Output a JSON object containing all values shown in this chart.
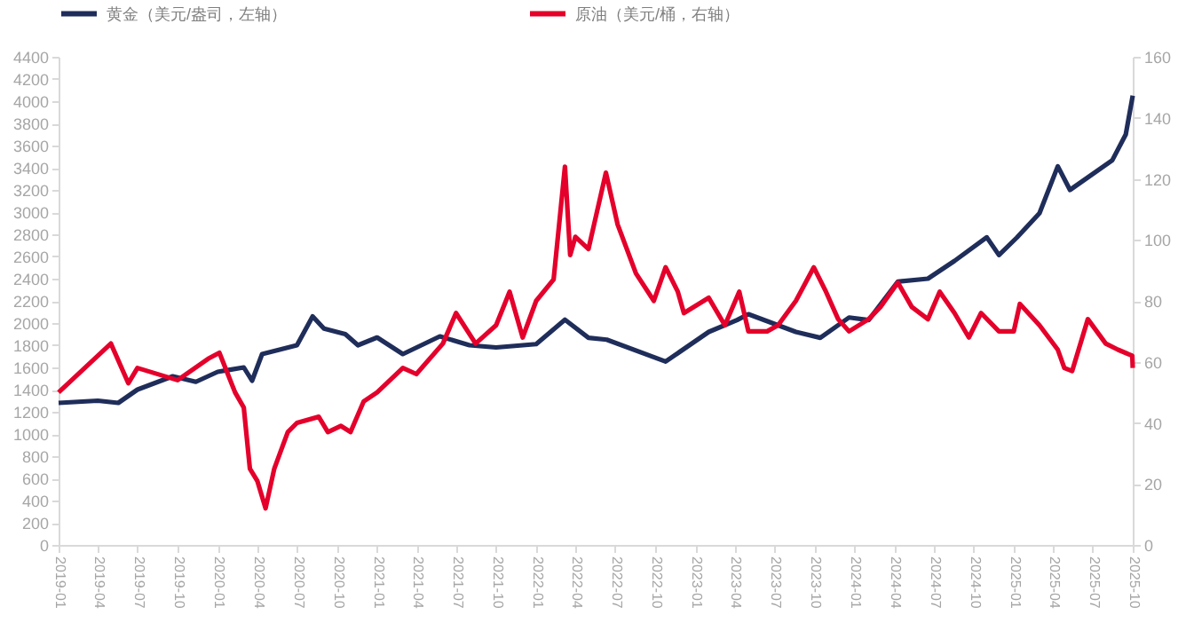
{
  "chart_data": {
    "type": "line",
    "legend": "top",
    "grid": false,
    "xlim": [
      "2019-01",
      "2025-10"
    ],
    "xticks": [
      "2019-01",
      "2019-04",
      "2019-07",
      "2019-10",
      "2020-01",
      "2020-04",
      "2020-07",
      "2020-10",
      "2021-01",
      "2021-04",
      "2021-07",
      "2021-10",
      "2022-01",
      "2022-04",
      "2022-07",
      "2022-10",
      "2023-01",
      "2023-04",
      "2023-07",
      "2023-10",
      "2024-01",
      "2024-04",
      "2024-07",
      "2024-10",
      "2025-01",
      "2025-04",
      "2025-07",
      "2025-10"
    ],
    "ylim": [
      0,
      4400
    ],
    "yticks": [
      0,
      200,
      400,
      600,
      800,
      1000,
      1200,
      1400,
      1600,
      1800,
      2000,
      2200,
      2400,
      2600,
      2800,
      3000,
      3200,
      3400,
      3600,
      3800,
      4000,
      4200,
      4400
    ],
    "y2lim": [
      0,
      160
    ],
    "y2ticks": [
      0,
      20,
      40,
      60,
      80,
      100,
      120,
      140,
      160
    ],
    "series": [
      {
        "name": "黄金（美元/盎司，左轴）",
        "color": "#1f2d5a",
        "x": [
          "2019-01-01",
          "2019-04-01",
          "2019-05-18",
          "2019-07-01",
          "2019-09-20",
          "2019-11-12",
          "2020-01-01",
          "2020-03-01",
          "2020-03-20",
          "2020-04-12",
          "2020-07-01",
          "2020-08-06",
          "2020-09-01",
          "2020-10-20",
          "2020-11-18",
          "2021-01-01",
          "2021-03-01",
          "2021-05-25",
          "2021-08-01",
          "2021-10-01",
          "2022-01-01",
          "2022-03-08",
          "2022-05-01",
          "2022-06-12",
          "2022-10-25",
          "2023-02-01",
          "2023-04-07",
          "2023-05-03",
          "2023-08-20",
          "2023-10-15",
          "2023-12-20",
          "2024-02-03",
          "2024-04-10",
          "2024-06-18",
          "2024-08-18",
          "2024-10-31",
          "2024-11-28",
          "2025-01-08",
          "2025-03-01",
          "2025-04-12",
          "2025-05-10",
          "2025-08-15",
          "2025-09-15",
          "2025-10-01"
        ],
        "values": [
          1280,
          1300,
          1280,
          1400,
          1520,
          1470,
          1560,
          1600,
          1480,
          1720,
          1800,
          2060,
          1950,
          1900,
          1800,
          1870,
          1720,
          1880,
          1800,
          1780,
          1810,
          2030,
          1867,
          1850,
          1653,
          1920,
          2027,
          2080,
          1920,
          1867,
          2050,
          2027,
          2373,
          2400,
          2560,
          2773,
          2613,
          2770,
          2990,
          3413,
          3200,
          3467,
          3700,
          4050
        ]
      },
      {
        "name": "原油（美元/桶，右轴）",
        "color": "#e4002b",
        "axis": "y2",
        "x": [
          "2019-01-01",
          "2019-04-01",
          "2019-05-01",
          "2019-06-10",
          "2019-07-01",
          "2019-10-01",
          "2019-12-10",
          "2020-01-05",
          "2020-02-10",
          "2020-03-01",
          "2020-03-15",
          "2020-04-01",
          "2020-04-20",
          "2020-05-10",
          "2020-06-10",
          "2020-07-01",
          "2020-08-20",
          "2020-09-10",
          "2020-10-10",
          "2020-11-01",
          "2020-12-01",
          "2021-01-01",
          "2021-03-01",
          "2021-04-01",
          "2021-06-01",
          "2021-07-01",
          "2021-08-15",
          "2021-10-01",
          "2021-11-01",
          "2021-12-01",
          "2022-01-01",
          "2022-02-10",
          "2022-03-08",
          "2022-03-20",
          "2022-04-01",
          "2022-05-01",
          "2022-06-10",
          "2022-07-07",
          "2022-08-18",
          "2022-09-28",
          "2022-10-25",
          "2022-11-22",
          "2022-12-06",
          "2023-02-01",
          "2023-03-10",
          "2023-04-12",
          "2023-05-03",
          "2023-06-15",
          "2023-07-10",
          "2023-08-20",
          "2023-09-30",
          "2023-10-28",
          "2023-11-25",
          "2023-12-20",
          "2024-02-03",
          "2024-03-01",
          "2024-04-10",
          "2024-05-12",
          "2024-06-18",
          "2024-07-15",
          "2024-08-18",
          "2024-09-20",
          "2024-10-18",
          "2024-11-28",
          "2025-01-01",
          "2025-01-15",
          "2025-03-01",
          "2025-04-12",
          "2025-04-27",
          "2025-05-15",
          "2025-06-20",
          "2025-07-31",
          "2025-08-28",
          "2025-09-30",
          "2025-10-01"
        ],
        "values": [
          50,
          62,
          66,
          53,
          58,
          54,
          61,
          63,
          50,
          45,
          25,
          21,
          12,
          25,
          37,
          40,
          42,
          37,
          39,
          37,
          47,
          50,
          58,
          56,
          66,
          76,
          66,
          72,
          83,
          68,
          80,
          87,
          124,
          95,
          101,
          97,
          122,
          105,
          89,
          80,
          91,
          83,
          76,
          81,
          72,
          83,
          70,
          70,
          72,
          80,
          91,
          83,
          74,
          70,
          74,
          78,
          86,
          78,
          74,
          83,
          76,
          68,
          76,
          70,
          70,
          79,
          72,
          64,
          58,
          57,
          74,
          66,
          64,
          62,
          58
        ]
      }
    ]
  }
}
